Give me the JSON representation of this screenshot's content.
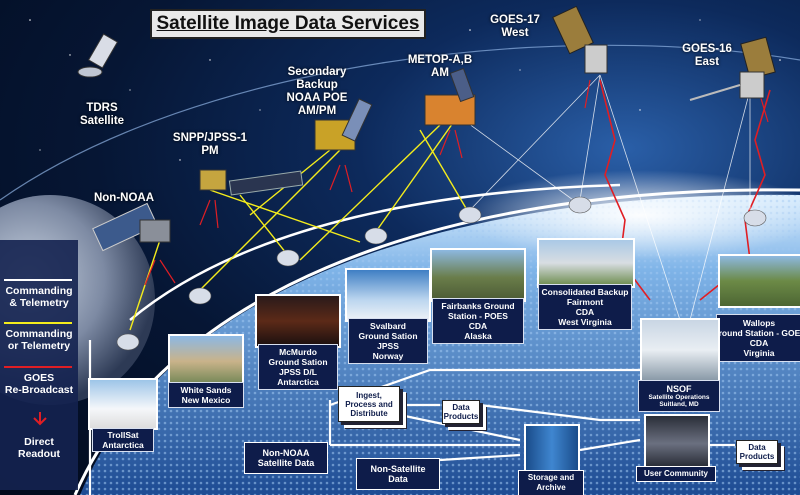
{
  "title": "Satellite Image Data Services",
  "satellites": {
    "tdrs": "TDRS\nSatellite",
    "snpp": "SNPP/JPSS-1\nPM",
    "secondary": "Secondary\nBackup\nNOAA POE\nAM/PM",
    "metop": "METOP-A,B\nAM",
    "goes17": "GOES-17\nWest",
    "goes16": "GOES-16\nEast",
    "non_noaa": "Non-NOAA"
  },
  "legend": {
    "cmd_telemetry": "Commanding\n& Telemetry",
    "cmd_or_telemetry": "Commanding\nor Telemetry",
    "goes_rebroadcast": "GOES\nRe-Broadcast",
    "direct_readout": "Direct\nReadout"
  },
  "stations": {
    "trollsat": "TrollSat\nAntarctica",
    "white_sands": "White Sands\nNew Mexico",
    "mcmurdo": "McMurdo\nGround Sation\nJPSS D/L\nAntarctica",
    "svalbard": "Svalbard\nGround Sation\nJPSS\nNorway",
    "fairbanks": "Fairbanks Ground\nStation - POES\nCDA\nAlaska",
    "consolidated": "Consolidated Backup\nFairmont\nCDA\nWest Virginia",
    "wallops": "Wallops\nGround Station - GOES\nCDA\nVirginia",
    "nsof_title": "NSOF",
    "nsof_sub": "Satellite Operations\nSuitland, MD"
  },
  "flow": {
    "ingest": "Ingest,\nProcess and\nDistribute",
    "data_products_1": "Data\nProducts",
    "data_products_2": "Data\nProducts",
    "non_noaa_data": "Non-NOAA\nSatellite Data",
    "non_sat_data": "Non-Satellite\nData",
    "storage": "Storage and\nArchive",
    "user_community": "User Community"
  },
  "colors": {
    "commanding_telemetry": "#ffffff",
    "commanding_or_telemetry": "#f3ec1c",
    "goes_rebroadcast": "#e01e24",
    "direct_readout": "#e01e24",
    "caption_bg": "#0e1c4a"
  }
}
